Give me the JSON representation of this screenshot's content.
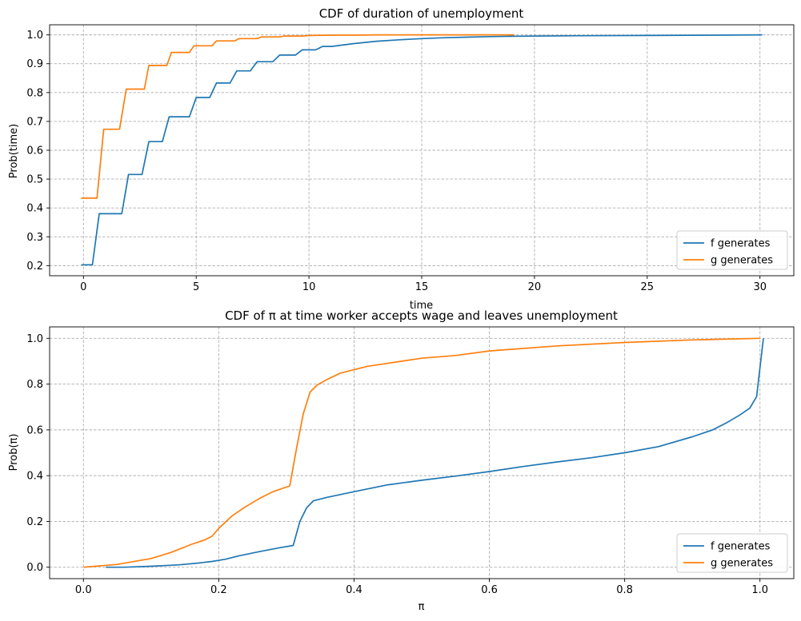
{
  "chart_data": [
    {
      "type": "line",
      "title": "CDF of duration of unemployment",
      "xlabel": "time",
      "ylabel": "Prob(time)",
      "xlim": [
        -1.5,
        31.5
      ],
      "ylim": [
        0.165,
        1.035
      ],
      "xticks": [
        0,
        5,
        10,
        15,
        20,
        25,
        30
      ],
      "yticks": [
        0.2,
        0.3,
        0.4,
        0.5,
        0.6,
        0.7,
        0.8,
        0.9,
        1.0
      ],
      "grid": true,
      "legend_position": "lower right",
      "series": [
        {
          "name": "f generates",
          "color": "#1f77b4",
          "x": [
            -0.1,
            0.4,
            0.7,
            1.7,
            2.0,
            2.6,
            2.9,
            3.5,
            3.8,
            4.7,
            5.0,
            5.6,
            5.9,
            6.5,
            6.8,
            7.4,
            7.7,
            8.4,
            8.7,
            9.4,
            9.7,
            10.3,
            10.6,
            11.0,
            12.0,
            13.0,
            14.0,
            15.0,
            16.0,
            17.0,
            18.0,
            19.0,
            20.0,
            22.0,
            25.0,
            28.0,
            30.1
          ],
          "y": [
            0.203,
            0.203,
            0.38,
            0.38,
            0.516,
            0.516,
            0.63,
            0.63,
            0.716,
            0.716,
            0.783,
            0.783,
            0.833,
            0.833,
            0.875,
            0.875,
            0.907,
            0.907,
            0.93,
            0.93,
            0.948,
            0.948,
            0.96,
            0.96,
            0.97,
            0.978,
            0.983,
            0.987,
            0.99,
            0.992,
            0.994,
            0.995,
            0.996,
            0.997,
            0.998,
            0.999,
            1.0
          ]
        },
        {
          "name": "g generates",
          "color": "#ff7f0e",
          "x": [
            -0.1,
            0.6,
            0.9,
            1.6,
            1.9,
            2.7,
            2.9,
            3.7,
            3.9,
            4.7,
            4.9,
            5.7,
            5.9,
            6.7,
            6.9,
            7.7,
            7.9,
            8.7,
            8.9,
            9.7,
            10.0,
            11.0,
            12.0,
            13.0,
            15.0,
            17.0,
            19.1
          ],
          "y": [
            0.434,
            0.434,
            0.673,
            0.673,
            0.812,
            0.812,
            0.894,
            0.894,
            0.939,
            0.939,
            0.962,
            0.962,
            0.979,
            0.979,
            0.987,
            0.987,
            0.993,
            0.993,
            0.996,
            0.996,
            0.998,
            0.999,
            0.999,
            1.0,
            1.0,
            1.0,
            1.0
          ]
        }
      ]
    },
    {
      "type": "line",
      "title": "CDF of π at time worker accepts wage and leaves unemployment",
      "xlabel": "π",
      "ylabel": "Prob(π)",
      "xlim": [
        -0.05,
        1.05
      ],
      "ylim": [
        -0.05,
        1.05
      ],
      "xticks": [
        0.0,
        0.2,
        0.4,
        0.6,
        0.8,
        1.0
      ],
      "yticks": [
        0.0,
        0.2,
        0.4,
        0.6,
        0.8,
        1.0
      ],
      "grid": true,
      "legend_position": "lower right",
      "series": [
        {
          "name": "f generates",
          "color": "#1f77b4",
          "x": [
            0.033,
            0.06,
            0.1,
            0.14,
            0.17,
            0.19,
            0.21,
            0.23,
            0.26,
            0.29,
            0.31,
            0.32,
            0.33,
            0.34,
            0.36,
            0.4,
            0.45,
            0.5,
            0.55,
            0.6,
            0.65,
            0.7,
            0.75,
            0.8,
            0.85,
            0.9,
            0.93,
            0.95,
            0.97,
            0.985,
            0.995,
            1.005
          ],
          "y": [
            0.0,
            0.0,
            0.004,
            0.01,
            0.018,
            0.025,
            0.035,
            0.05,
            0.068,
            0.085,
            0.095,
            0.2,
            0.26,
            0.29,
            0.305,
            0.33,
            0.36,
            0.38,
            0.398,
            0.418,
            0.44,
            0.46,
            0.478,
            0.5,
            0.527,
            0.57,
            0.6,
            0.63,
            0.665,
            0.695,
            0.745,
            1.0
          ]
        },
        {
          "name": "g generates",
          "color": "#ff7f0e",
          "x": [
            0.0,
            0.05,
            0.1,
            0.13,
            0.16,
            0.18,
            0.19,
            0.2,
            0.22,
            0.24,
            0.26,
            0.28,
            0.305,
            0.315,
            0.325,
            0.335,
            0.345,
            0.36,
            0.38,
            0.42,
            0.47,
            0.5,
            0.55,
            0.6,
            0.7,
            0.8,
            0.9,
            1.0
          ],
          "y": [
            0.0,
            0.012,
            0.038,
            0.065,
            0.1,
            0.12,
            0.135,
            0.17,
            0.225,
            0.265,
            0.3,
            0.33,
            0.355,
            0.52,
            0.67,
            0.765,
            0.795,
            0.82,
            0.848,
            0.878,
            0.9,
            0.913,
            0.925,
            0.945,
            0.967,
            0.982,
            0.993,
            1.0
          ]
        }
      ]
    }
  ]
}
